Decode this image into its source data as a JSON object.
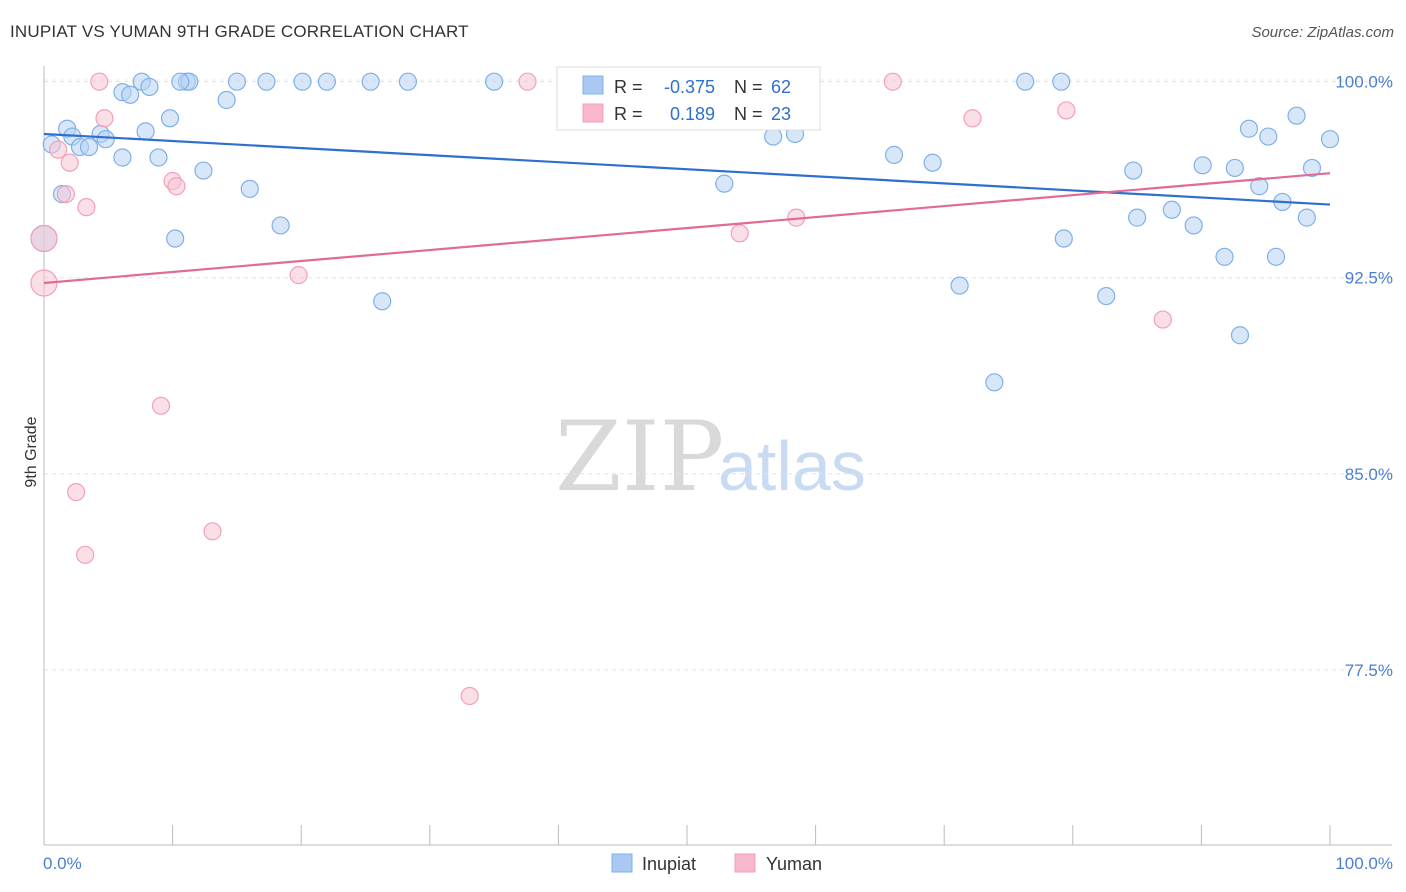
{
  "header": {
    "title": "INUPIAT VS YUMAN 9TH GRADE CORRELATION CHART",
    "source": "Source: ZipAtlas.com"
  },
  "watermark": {
    "zip": "ZIP",
    "atlas": "atlas"
  },
  "stats_box": {
    "rows": [
      {
        "r_label": "R =",
        "r_value": "-0.375",
        "n_label": "N =",
        "n_value": "62",
        "color": "#a9c9f2"
      },
      {
        "r_label": "R =",
        "r_value": "0.189",
        "n_label": "N =",
        "n_value": "23",
        "color": "#f7b8cb"
      }
    ]
  },
  "legend": {
    "items": [
      {
        "label": "Inupiat",
        "color": "#a9c9f2"
      },
      {
        "label": "Yuman",
        "color": "#f7b8cb"
      }
    ]
  },
  "chart_data": {
    "type": "scatter",
    "title": "INUPIAT VS YUMAN 9TH GRADE CORRELATION CHART",
    "xlabel": "",
    "ylabel": "9th Grade",
    "xlim": [
      0,
      100
    ],
    "ylim": [
      70.8,
      100.6
    ],
    "x_tick_labels": [
      "0.0%",
      "100.0%"
    ],
    "y_ticks": [
      77.5,
      85.0,
      92.5,
      100.0
    ],
    "y_tick_labels": [
      "77.5%",
      "85.0%",
      "92.5%",
      "100.0%"
    ],
    "grid": true,
    "legend_position": "bottom-center",
    "series": [
      {
        "name": "Inupiat",
        "color": "#7fb0ea",
        "fill": "#b8d3f3",
        "trend": {
          "x": [
            0,
            100
          ],
          "y": [
            98.0,
            95.3
          ],
          "color": "#2f6fd0"
        },
        "points": [
          [
            0.0,
            94.0
          ],
          [
            0.6,
            97.6
          ],
          [
            1.4,
            95.7
          ],
          [
            1.8,
            98.2
          ],
          [
            2.2,
            97.9
          ],
          [
            2.8,
            97.5
          ],
          [
            3.5,
            97.5
          ],
          [
            4.4,
            98.0
          ],
          [
            4.8,
            97.8
          ],
          [
            6.1,
            99.6
          ],
          [
            6.1,
            97.1
          ],
          [
            6.7,
            99.5
          ],
          [
            7.6,
            100.0
          ],
          [
            7.9,
            98.1
          ],
          [
            8.2,
            99.8
          ],
          [
            8.9,
            97.1
          ],
          [
            9.8,
            98.6
          ],
          [
            10.2,
            94.0
          ],
          [
            11.1,
            100.0
          ],
          [
            11.3,
            100.0
          ],
          [
            12.4,
            96.6
          ],
          [
            14.2,
            99.3
          ],
          [
            15.0,
            100.0
          ],
          [
            16.0,
            95.9
          ],
          [
            17.3,
            100.0
          ],
          [
            18.4,
            94.5
          ],
          [
            20.1,
            100.0
          ],
          [
            22.0,
            100.0
          ],
          [
            25.4,
            100.0
          ],
          [
            26.3,
            91.6
          ],
          [
            28.3,
            100.0
          ],
          [
            35.0,
            100.0
          ],
          [
            47.2,
            100.0
          ],
          [
            52.9,
            96.1
          ],
          [
            56.7,
            97.9
          ],
          [
            58.4,
            98.0
          ],
          [
            66.1,
            97.2
          ],
          [
            69.1,
            96.9
          ],
          [
            71.2,
            92.2
          ],
          [
            73.9,
            88.5
          ],
          [
            79.1,
            100.0
          ],
          [
            79.3,
            94.0
          ],
          [
            82.6,
            91.8
          ],
          [
            84.7,
            96.6
          ],
          [
            85.0,
            94.8
          ],
          [
            87.7,
            95.1
          ],
          [
            89.4,
            94.5
          ],
          [
            90.1,
            96.8
          ],
          [
            91.8,
            93.3
          ],
          [
            92.6,
            96.7
          ],
          [
            93.0,
            90.3
          ],
          [
            93.7,
            98.2
          ],
          [
            94.5,
            96.0
          ],
          [
            95.2,
            97.9
          ],
          [
            95.8,
            93.3
          ],
          [
            96.3,
            95.4
          ],
          [
            97.4,
            98.7
          ],
          [
            98.2,
            94.8
          ],
          [
            98.6,
            96.7
          ],
          [
            100.0,
            97.8
          ],
          [
            10.6,
            100.0
          ],
          [
            76.3,
            100.0
          ]
        ]
      },
      {
        "name": "Yuman",
        "color": "#f2a0b8",
        "fill": "#f8c4d3",
        "trend": {
          "x": [
            0,
            100
          ],
          "y": [
            92.3,
            96.5
          ],
          "color": "#e06b95"
        },
        "points": [
          [
            0.0,
            92.3
          ],
          [
            1.1,
            97.4
          ],
          [
            1.7,
            95.7
          ],
          [
            2.0,
            96.9
          ],
          [
            2.5,
            84.3
          ],
          [
            3.2,
            81.9
          ],
          [
            3.3,
            95.2
          ],
          [
            4.3,
            100.0
          ],
          [
            4.7,
            98.6
          ],
          [
            9.1,
            87.6
          ],
          [
            10.0,
            96.2
          ],
          [
            10.3,
            96.0
          ],
          [
            13.1,
            82.8
          ],
          [
            19.8,
            92.6
          ],
          [
            33.1,
            76.5
          ],
          [
            37.6,
            100.0
          ],
          [
            54.1,
            94.2
          ],
          [
            58.5,
            94.8
          ],
          [
            66.0,
            100.0
          ],
          [
            72.2,
            98.6
          ],
          [
            79.5,
            98.9
          ],
          [
            87.0,
            90.9
          ],
          [
            0.0,
            94.0
          ]
        ]
      }
    ]
  }
}
